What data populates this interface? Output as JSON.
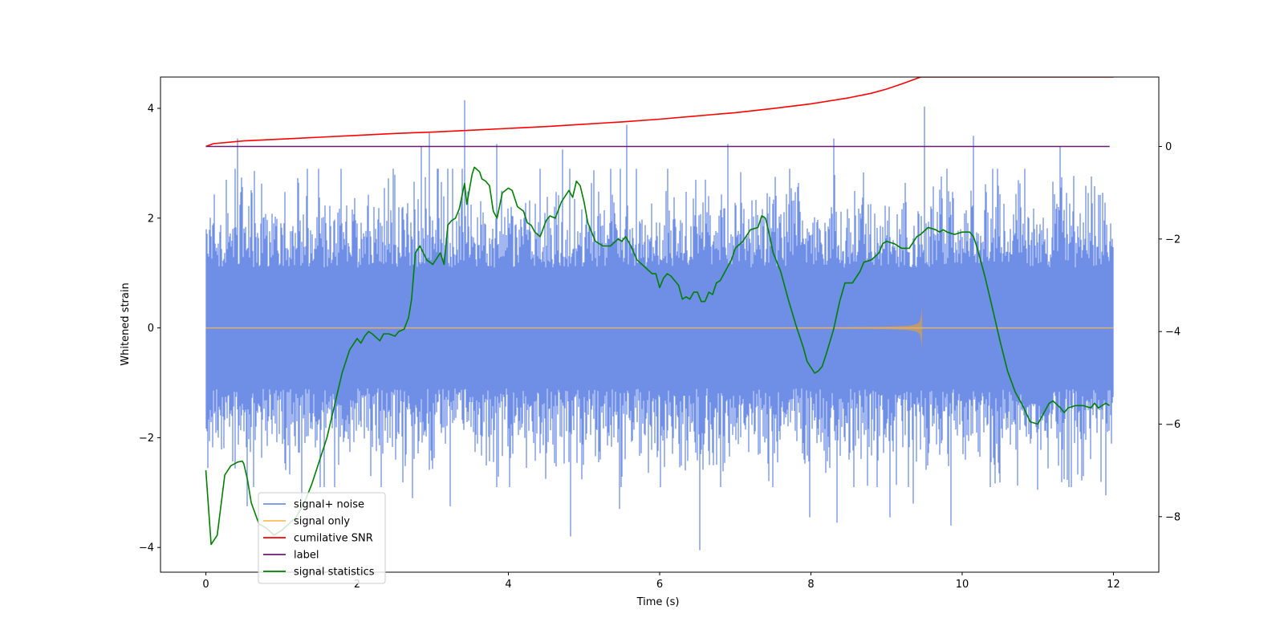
{
  "chart_data": {
    "type": "line",
    "title": "",
    "xlabel": "Time (s)",
    "ylabel": "Whitened strain",
    "ylabel_right": "",
    "xlim": [
      -0.6,
      12.6
    ],
    "ylim_left": [
      -4.45,
      4.57
    ],
    "ylim_right": [
      -9.2,
      1.5
    ],
    "xticks": [
      0,
      2,
      4,
      6,
      8,
      10,
      12
    ],
    "yticks_left": [
      -4,
      -2,
      0,
      2,
      4
    ],
    "yticks_right": [
      -8,
      -6,
      -4,
      -2,
      0
    ],
    "grid": false,
    "legend_location": "lower-left",
    "series": [
      {
        "name": "signal+ noise",
        "axis": "left",
        "color": "#6f8ee6",
        "style": "noise-band",
        "t_start": 0,
        "t_end": 12,
        "spikes": [
          [
            0.42,
            3.45
          ],
          [
            2.85,
            3.3
          ],
          [
            2.95,
            3.55
          ],
          [
            3.42,
            4.15
          ],
          [
            3.85,
            3.35
          ],
          [
            4.72,
            3.25
          ],
          [
            5.57,
            3.7
          ],
          [
            6.9,
            3.35
          ],
          [
            8.3,
            3.45
          ],
          [
            9.5,
            4.03
          ],
          [
            10.15,
            3.5
          ],
          [
            11.3,
            3.3
          ],
          [
            0.55,
            -3.25
          ],
          [
            1.27,
            -3.3
          ],
          [
            2.73,
            -3.1
          ],
          [
            3.23,
            -3.25
          ],
          [
            4.82,
            -3.8
          ],
          [
            5.47,
            -3.3
          ],
          [
            6.53,
            -4.05
          ],
          [
            7.98,
            -3.45
          ],
          [
            8.35,
            -3.55
          ],
          [
            9.05,
            -3.45
          ],
          [
            9.35,
            -3.2
          ],
          [
            9.85,
            -3.6
          ],
          [
            11.0,
            -2.95
          ],
          [
            11.9,
            -3.05
          ]
        ],
        "values": []
      },
      {
        "name": "signal only",
        "axis": "left",
        "color": "#ffbd5a",
        "style": "chirp",
        "t_start": 0,
        "t_end": 12,
        "merger_time": 9.47,
        "merger_amplitude": 0.4,
        "values": []
      },
      {
        "name": "cumilative SNR",
        "axis": "right",
        "color": "#ff0000",
        "style": "line",
        "x": [
          0,
          0.1,
          0.5,
          1,
          1.5,
          2,
          2.5,
          3,
          3.5,
          4,
          4.5,
          5,
          5.5,
          6,
          6.5,
          7,
          7.5,
          8,
          8.5,
          8.8,
          9.0,
          9.2,
          9.35,
          9.45,
          9.5,
          10,
          11,
          12
        ],
        "values": [
          0.0,
          0.06,
          0.12,
          0.16,
          0.2,
          0.24,
          0.28,
          0.31,
          0.35,
          0.39,
          0.43,
          0.48,
          0.53,
          0.59,
          0.66,
          0.73,
          0.82,
          0.92,
          1.05,
          1.15,
          1.24,
          1.35,
          1.44,
          1.5,
          1.5,
          1.5,
          1.5,
          1.5
        ]
      },
      {
        "name": "label",
        "axis": "right",
        "color": "#6a1b6e",
        "style": "line",
        "x": [
          0,
          11.95
        ],
        "values": [
          0,
          0
        ]
      },
      {
        "name": "signal statistics",
        "axis": "right",
        "color": "#008000",
        "style": "line",
        "x": [
          0.0,
          0.07,
          0.15,
          0.25,
          0.33,
          0.42,
          0.48,
          0.5,
          0.55,
          0.6,
          0.7,
          0.8,
          0.9,
          1.0,
          1.1,
          1.2,
          1.3,
          1.4,
          1.5,
          1.6,
          1.7,
          1.8,
          1.9,
          2.0,
          2.05,
          2.1,
          2.15,
          2.2,
          2.3,
          2.35,
          2.42,
          2.5,
          2.55,
          2.62,
          2.68,
          2.72,
          2.77,
          2.83,
          2.92,
          3.0,
          3.1,
          3.15,
          3.2,
          3.25,
          3.3,
          3.35,
          3.42,
          3.45,
          3.52,
          3.55,
          3.62,
          3.65,
          3.7,
          3.75,
          3.8,
          3.85,
          3.92,
          4.0,
          4.05,
          4.12,
          4.2,
          4.25,
          4.3,
          4.35,
          4.42,
          4.5,
          4.55,
          4.62,
          4.7,
          4.8,
          4.85,
          4.9,
          4.95,
          5.0,
          5.05,
          5.15,
          5.25,
          5.35,
          5.45,
          5.5,
          5.55,
          5.62,
          5.7,
          5.8,
          5.9,
          5.95,
          6.0,
          6.05,
          6.1,
          6.15,
          6.2,
          6.25,
          6.3,
          6.35,
          6.4,
          6.45,
          6.5,
          6.55,
          6.6,
          6.65,
          6.7,
          6.75,
          6.8,
          6.85,
          6.9,
          6.95,
          7.0,
          7.1,
          7.2,
          7.3,
          7.35,
          7.4,
          7.45,
          7.5,
          7.6,
          7.7,
          7.8,
          7.9,
          7.95,
          8.05,
          8.1,
          8.15,
          8.2,
          8.3,
          8.38,
          8.45,
          8.55,
          8.65,
          8.7,
          8.8,
          8.9,
          8.95,
          9.0,
          9.1,
          9.2,
          9.3,
          9.4,
          9.45,
          9.55,
          9.65,
          9.7,
          9.75,
          9.8,
          9.9,
          10.0,
          10.1,
          10.15,
          10.2,
          10.3,
          10.4,
          10.5,
          10.6,
          10.7,
          10.8,
          10.9,
          11.0,
          11.05,
          11.1,
          11.15,
          11.2,
          11.3,
          11.35,
          11.4,
          11.5,
          11.6,
          11.7,
          11.75,
          11.8,
          11.9,
          11.95
        ],
        "values": [
          -7.0,
          -8.6,
          -8.4,
          -7.1,
          -6.9,
          -6.82,
          -6.8,
          -6.85,
          -7.2,
          -7.7,
          -8.15,
          -8.25,
          -8.4,
          -8.3,
          -8.15,
          -8.0,
          -7.7,
          -7.3,
          -6.8,
          -6.3,
          -5.6,
          -4.9,
          -4.4,
          -4.15,
          -4.25,
          -4.1,
          -4.0,
          -4.05,
          -4.2,
          -4.05,
          -4.05,
          -4.1,
          -4.0,
          -3.95,
          -3.7,
          -3.3,
          -2.3,
          -2.15,
          -2.45,
          -2.55,
          -2.3,
          -2.55,
          -1.7,
          -1.6,
          -1.55,
          -1.35,
          -0.8,
          -1.25,
          -0.6,
          -0.45,
          -0.55,
          -0.7,
          -0.75,
          -0.85,
          -1.4,
          -1.55,
          -1.0,
          -0.9,
          -0.95,
          -1.3,
          -1.4,
          -1.65,
          -1.7,
          -1.85,
          -1.95,
          -1.6,
          -1.5,
          -1.55,
          -1.2,
          -0.95,
          -1.1,
          -0.75,
          -0.85,
          -1.2,
          -1.65,
          -2.05,
          -2.15,
          -2.15,
          -2.0,
          -2.05,
          -1.95,
          -2.15,
          -2.45,
          -2.6,
          -2.75,
          -2.75,
          -3.05,
          -2.85,
          -2.75,
          -2.8,
          -2.9,
          -3.0,
          -3.3,
          -3.25,
          -3.3,
          -3.15,
          -3.15,
          -3.35,
          -3.35,
          -3.15,
          -3.2,
          -2.95,
          -2.9,
          -2.75,
          -2.6,
          -2.45,
          -2.2,
          -2.05,
          -1.8,
          -1.75,
          -1.5,
          -1.55,
          -1.9,
          -2.3,
          -2.7,
          -3.3,
          -3.85,
          -4.35,
          -4.65,
          -4.9,
          -4.85,
          -4.75,
          -4.5,
          -3.95,
          -3.35,
          -2.95,
          -2.95,
          -2.7,
          -2.5,
          -2.45,
          -2.3,
          -2.1,
          -2.05,
          -2.1,
          -2.2,
          -2.2,
          -1.95,
          -1.9,
          -1.75,
          -1.8,
          -1.85,
          -1.8,
          -1.85,
          -1.9,
          -1.85,
          -1.85,
          -1.95,
          -2.2,
          -2.8,
          -3.5,
          -4.2,
          -4.85,
          -5.3,
          -5.6,
          -5.95,
          -6.0,
          -5.85,
          -5.7,
          -5.55,
          -5.5,
          -5.65,
          -5.75,
          -5.65,
          -5.6,
          -5.6,
          -5.65,
          -5.55,
          -5.65,
          -5.55,
          -5.6
        ]
      }
    ]
  }
}
